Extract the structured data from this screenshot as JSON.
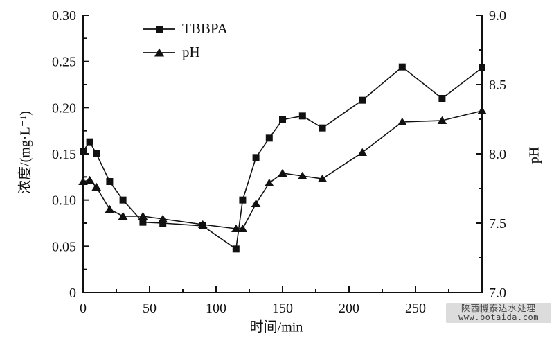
{
  "chart_data": {
    "type": "line",
    "title": "",
    "xlabel": "时间/min",
    "ylabel_left": "浓度/(mg·L⁻¹)",
    "ylabel_right": "pH",
    "xlim": [
      0,
      300
    ],
    "ylim_left": [
      0,
      0.3
    ],
    "ylim_right": [
      7.0,
      9.0
    ],
    "grid": false,
    "legend_position": "inside-top-left",
    "x_major_ticks": [
      0,
      50,
      100,
      150,
      200,
      250,
      300
    ],
    "x_minor_step": 25,
    "y_left_ticks": {
      "values": [
        0,
        0.05,
        0.1,
        0.15,
        0.2,
        0.25,
        0.3
      ],
      "labels": [
        "0",
        "0.05",
        "0.10",
        "0.15",
        "0.20",
        "0.25",
        "0.30"
      ]
    },
    "y_left_minor_step": 0.025,
    "y_right_ticks": {
      "values": [
        7.0,
        7.5,
        8.0,
        8.5,
        9.0
      ],
      "labels": [
        "7.0",
        "7.5",
        "8.0",
        "8.5",
        "9.0"
      ]
    },
    "y_right_minor_step": 0.25,
    "x": [
      0,
      5,
      10,
      20,
      30,
      45,
      60,
      90,
      115,
      120,
      130,
      140,
      150,
      165,
      180,
      210,
      240,
      270,
      300
    ],
    "series": [
      {
        "name": "TBBPA",
        "axis": "left",
        "marker": "square",
        "values": [
          0.153,
          0.163,
          0.15,
          0.12,
          0.1,
          0.076,
          0.075,
          0.072,
          0.047,
          0.1,
          0.146,
          0.167,
          0.187,
          0.191,
          0.178,
          0.208,
          0.244,
          0.21,
          0.243
        ]
      },
      {
        "name": "pH",
        "axis": "right",
        "marker": "triangle",
        "values": [
          7.8,
          7.81,
          7.76,
          7.6,
          7.55,
          7.55,
          7.53,
          7.49,
          7.46,
          7.46,
          7.64,
          7.79,
          7.86,
          7.84,
          7.82,
          8.01,
          8.23,
          8.24,
          8.31
        ]
      }
    ]
  },
  "axis_labels": {
    "x": "时间/min",
    "y_left": "浓度/(mg·L⁻¹)",
    "y_right": "pH"
  },
  "legend": {
    "items": [
      {
        "label": "TBBPA",
        "marker": "square"
      },
      {
        "label": "pH",
        "marker": "triangle"
      }
    ]
  },
  "watermark": {
    "line1": "陕西博泰达水处理",
    "line2": "www.botaida.com"
  },
  "colors": {
    "line": "#111111",
    "background": "#ffffff",
    "watermark_bg": "#d7d7d7",
    "watermark_text": "#474747"
  }
}
